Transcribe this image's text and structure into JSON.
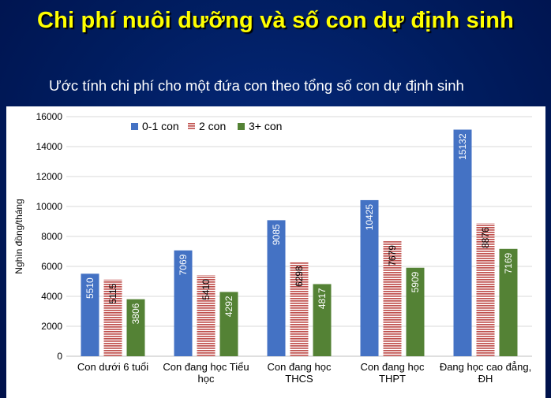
{
  "slide": {
    "title": "Chi phí nuôi dưỡng và số con dự định sinh",
    "subtitle": "Ước tính chi phí cho một đứa con theo tổng số con dự định sinh"
  },
  "colors": {
    "background": "#001c5e",
    "title": "#ffff00",
    "series_blue": "#4472c4",
    "series_red": "#c0504d",
    "series_green": "#548235"
  },
  "chart_data": {
    "type": "bar",
    "ylabel": "Nghìn đồng/tháng",
    "xlabel": "",
    "ylim": [
      0,
      16000
    ],
    "yticks": [
      "0",
      "2000",
      "4000",
      "6000",
      "8000",
      "10000",
      "12000",
      "14000",
      "16000"
    ],
    "grid": true,
    "legend_position": "top",
    "categories": [
      [
        "Con dưới 6 tuổi"
      ],
      [
        "Con đang học Tiểu",
        "học"
      ],
      [
        "Con đang học",
        "THCS"
      ],
      [
        "Con đang học",
        "THPT"
      ],
      [
        "Đang học cao đẳng,",
        "ĐH"
      ]
    ],
    "series": [
      {
        "name": "0-1 con",
        "color": "#4472c4",
        "pattern": "solid",
        "values": [
          5510,
          7069,
          9085,
          10425,
          15132
        ]
      },
      {
        "name": "2 con",
        "color": "#c0504d",
        "pattern": "horizontal-stripes",
        "values": [
          5115,
          5410,
          6298,
          7679,
          8876
        ]
      },
      {
        "name": "3+ con",
        "color": "#548235",
        "pattern": "solid",
        "values": [
          3806,
          4292,
          4817,
          5909,
          7169
        ]
      }
    ]
  }
}
